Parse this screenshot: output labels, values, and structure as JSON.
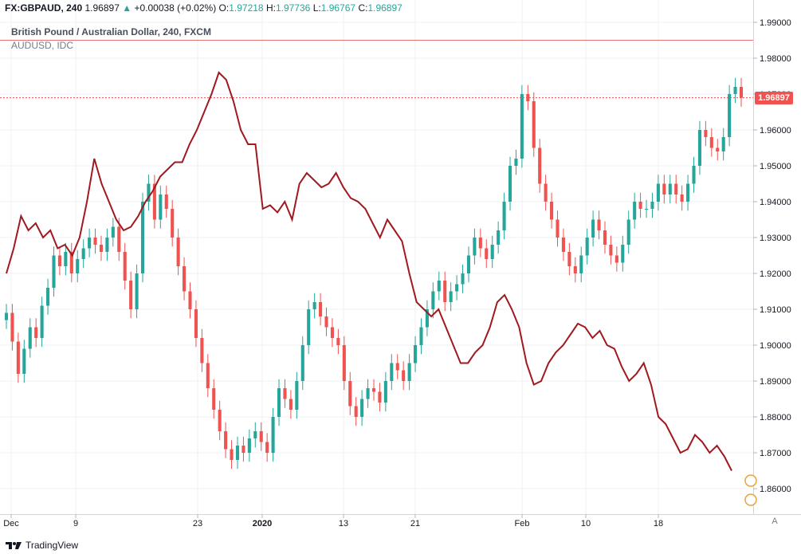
{
  "header": {
    "symbol": "FX:GBPAUD, 240",
    "last": "1.96897",
    "arrow": "▲",
    "change": "+0.00038 (+0.02%)",
    "o_label": "O:",
    "o": "1.97218",
    "h_label": "H:",
    "h": "1.97736",
    "l_label": "L:",
    "l": "1.96767",
    "c_label": "C:",
    "c": "1.96897"
  },
  "legend": {
    "main_series": "British Pound / Australian Dollar, 240, FXCM",
    "compare_series": "AUDUSD, IDC"
  },
  "price_tag": "1.96897",
  "auto_button": "A",
  "brand": "TradingView",
  "colors": {
    "up": "#26a69a",
    "down": "#ef5350",
    "compare_line": "#a0191f",
    "hline": "#e57373",
    "grid": "#eef0f4"
  },
  "chart_data": {
    "type": "line",
    "x_ticks": [
      "Dec",
      "9",
      "23",
      "2020",
      "13",
      "21",
      "Feb",
      "10",
      "18"
    ],
    "y_ticks": [
      "1.99000",
      "1.98000",
      "1.97000",
      "1.96000",
      "1.95000",
      "1.94000",
      "1.93000",
      "1.92000",
      "1.91000",
      "1.90000",
      "1.89000",
      "1.88000",
      "1.87000",
      "1.86000"
    ],
    "ylim": [
      1.855,
      1.991
    ],
    "horizontal_line": 1.985,
    "last_price": 1.96897,
    "series": [
      {
        "name": "British Pound / Australian Dollar, 240, FXCM",
        "style": "candles",
        "close": [
          1.909,
          1.901,
          1.892,
          1.899,
          1.905,
          1.902,
          1.911,
          1.916,
          1.925,
          1.922,
          1.926,
          1.92,
          1.924,
          1.927,
          1.93,
          1.928,
          1.926,
          1.93,
          1.933,
          1.926,
          1.918,
          1.91,
          1.92,
          1.94,
          1.945,
          1.935,
          1.942,
          1.938,
          1.93,
          1.922,
          1.915,
          1.91,
          1.902,
          1.895,
          1.888,
          1.882,
          1.876,
          1.871,
          1.868,
          1.872,
          1.87,
          1.874,
          1.876,
          1.873,
          1.87,
          1.88,
          1.888,
          1.885,
          1.882,
          1.89,
          1.9,
          1.91,
          1.912,
          1.908,
          1.905,
          1.902,
          1.9,
          1.89,
          1.883,
          1.88,
          1.885,
          1.888,
          1.887,
          1.884,
          1.89,
          1.895,
          1.893,
          1.89,
          1.895,
          1.9,
          1.905,
          1.91,
          1.915,
          1.918,
          1.912,
          1.915,
          1.917,
          1.92,
          1.925,
          1.93,
          1.927,
          1.924,
          1.928,
          1.932,
          1.94,
          1.95,
          1.952,
          1.97,
          1.968,
          1.955,
          1.945,
          1.94,
          1.935,
          1.93,
          1.926,
          1.922,
          1.92,
          1.925,
          1.93,
          1.935,
          1.932,
          1.928,
          1.925,
          1.923,
          1.928,
          1.935,
          1.94,
          1.938,
          1.938,
          1.94,
          1.945,
          1.942,
          1.945,
          1.942,
          1.94,
          1.945,
          1.95,
          1.96,
          1.958,
          1.955,
          1.954,
          1.958,
          1.97,
          1.972,
          1.96897
        ]
      },
      {
        "name": "AUDUSD, IDC",
        "style": "line",
        "values_on_price_scale": [
          1.92,
          1.927,
          1.936,
          1.932,
          1.934,
          1.93,
          1.932,
          1.927,
          1.928,
          1.925,
          1.93,
          1.94,
          1.952,
          1.945,
          1.94,
          1.935,
          1.932,
          1.933,
          1.936,
          1.94,
          1.943,
          1.947,
          1.949,
          1.951,
          1.951,
          1.956,
          1.96,
          1.965,
          1.97,
          1.976,
          1.974,
          1.968,
          1.96,
          1.956,
          1.956,
          1.938,
          1.939,
          1.937,
          1.94,
          1.935,
          1.945,
          1.948,
          1.946,
          1.944,
          1.945,
          1.948,
          1.944,
          1.941,
          1.94,
          1.938,
          1.934,
          1.93,
          1.935,
          1.932,
          1.929,
          1.92,
          1.912,
          1.91,
          1.908,
          1.91,
          1.905,
          1.9,
          1.895,
          1.895,
          1.898,
          1.9,
          1.905,
          1.912,
          1.914,
          1.91,
          1.905,
          1.895,
          1.889,
          1.89,
          1.895,
          1.898,
          1.9,
          1.903,
          1.906,
          1.905,
          1.902,
          1.904,
          1.9,
          1.899,
          1.894,
          1.89,
          1.892,
          1.895,
          1.889,
          1.88,
          1.878,
          1.874,
          1.87,
          1.871,
          1.875,
          1.873,
          1.87,
          1.872,
          1.869,
          1.865
        ]
      }
    ]
  }
}
